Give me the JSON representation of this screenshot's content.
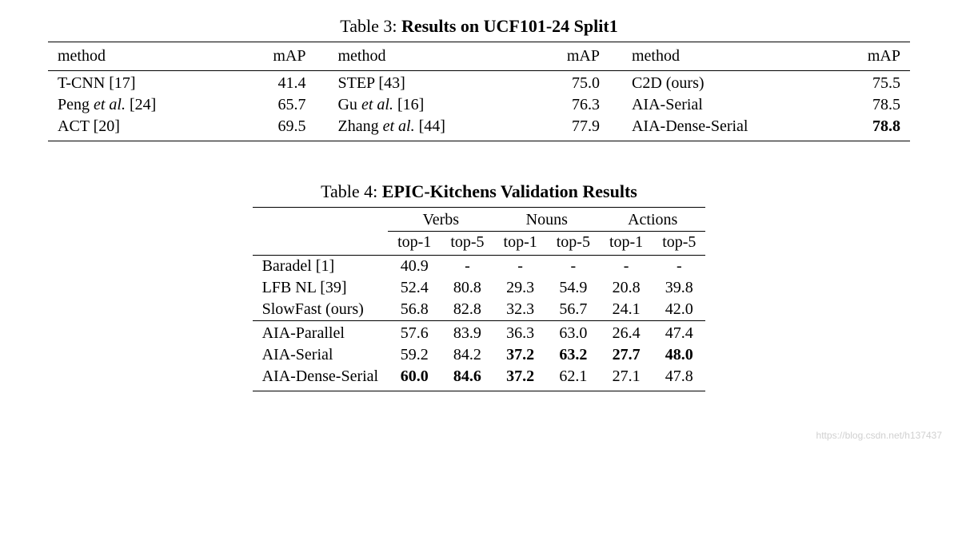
{
  "table3": {
    "caption_prefix": "Table 3: ",
    "caption_title": "Results on UCF101-24 Split1",
    "header_method": "method",
    "header_map": "mAP",
    "rows": [
      {
        "m1": "T-CNN [17]",
        "v1": "41.4",
        "m2": "STEP [43]",
        "v2": "75.0",
        "m3": "C2D (ours)",
        "v3": "75.5",
        "v3_bold": false
      },
      {
        "m1_pre": "Peng ",
        "m1_et": "et al.",
        "m1_post": " [24]",
        "v1": "65.7",
        "m2_pre": "Gu ",
        "m2_et": "et al.",
        "m2_post": " [16]",
        "v2": "76.3",
        "m3": "AIA-Serial",
        "v3": "78.5",
        "v3_bold": false
      },
      {
        "m1": "ACT [20]",
        "v1": "69.5",
        "m2_pre": "Zhang ",
        "m2_et": "et al.",
        "m2_post": " [44]",
        "v2": "77.9",
        "m3": "AIA-Dense-Serial",
        "v3": "78.8",
        "v3_bold": true
      }
    ]
  },
  "table4": {
    "caption_prefix": "Table 4: ",
    "caption_title": "EPIC-Kitchens Validation Results",
    "groups": {
      "verbs": "Verbs",
      "nouns": "Nouns",
      "actions": "Actions"
    },
    "subheaders": {
      "top1": "top-1",
      "top5": "top-5"
    },
    "rows": [
      {
        "method": "Baradel [1]",
        "verbs_t1": "40.9",
        "verbs_t5": "-",
        "nouns_t1": "-",
        "nouns_t5": "-",
        "actions_t1": "-",
        "actions_t5": "-"
      },
      {
        "method": "LFB NL [39]",
        "verbs_t1": "52.4",
        "verbs_t5": "80.8",
        "nouns_t1": "29.3",
        "nouns_t5": "54.9",
        "actions_t1": "20.8",
        "actions_t5": "39.8"
      },
      {
        "method": "SlowFast (ours)",
        "verbs_t1": "56.8",
        "verbs_t5": "82.8",
        "nouns_t1": "32.3",
        "nouns_t5": "56.7",
        "actions_t1": "24.1",
        "actions_t5": "42.0"
      },
      {
        "method": "AIA-Parallel",
        "verbs_t1": "57.6",
        "verbs_t5": "83.9",
        "nouns_t1": "36.3",
        "nouns_t5": "63.0",
        "actions_t1": "26.4",
        "actions_t5": "47.4",
        "sep": true
      },
      {
        "method": "AIA-Serial",
        "verbs_t1": "59.2",
        "verbs_t5": "84.2",
        "nouns_t1": "37.2",
        "nouns_t1_bold": true,
        "nouns_t5": "63.2",
        "nouns_t5_bold": true,
        "actions_t1": "27.7",
        "actions_t1_bold": true,
        "actions_t5": "48.0",
        "actions_t5_bold": true
      },
      {
        "method": "AIA-Dense-Serial",
        "verbs_t1": "60.0",
        "verbs_t1_bold": true,
        "verbs_t5": "84.6",
        "verbs_t5_bold": true,
        "nouns_t1": "37.2",
        "nouns_t1_bold": true,
        "nouns_t5": "62.1",
        "actions_t1": "27.1",
        "actions_t5": "47.8"
      }
    ]
  },
  "watermark": "https://blog.csdn.net/h137437",
  "colors": {
    "text": "#000000",
    "background": "#ffffff",
    "watermark": "#d0d0d0"
  }
}
